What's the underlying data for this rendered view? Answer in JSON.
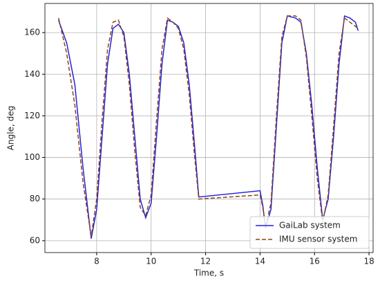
{
  "chart_data": {
    "type": "line",
    "x_label": "Time, s",
    "y_label": "Angle, deg",
    "x": [
      6.6,
      6.9,
      7.2,
      7.5,
      7.8,
      8.0,
      8.2,
      8.4,
      8.6,
      8.8,
      9.0,
      9.2,
      9.4,
      9.6,
      9.8,
      10.0,
      10.2,
      10.4,
      10.6,
      10.8,
      11.0,
      11.2,
      11.4,
      11.6,
      11.75,
      14.0,
      14.1,
      14.2,
      14.4,
      14.6,
      14.8,
      15.0,
      15.3,
      15.5,
      15.7,
      15.9,
      16.1,
      16.3,
      16.5,
      16.7,
      16.9,
      17.1,
      17.3,
      17.5,
      17.6
    ],
    "series": [
      {
        "name": "GaiLab system",
        "color": "#2222dd",
        "dash": false,
        "values": [
          166,
          155,
          135,
          95,
          61,
          75,
          110,
          145,
          162,
          164,
          160,
          140,
          110,
          80,
          71,
          78,
          110,
          145,
          166,
          165,
          163,
          155,
          135,
          105,
          81,
          84,
          77,
          66,
          75,
          115,
          155,
          168,
          167,
          165,
          150,
          125,
          95,
          70,
          80,
          110,
          145,
          168,
          167,
          165,
          161
        ]
      },
      {
        "name": "IMU sensor system",
        "color": "#8b4513",
        "dash": true,
        "values": [
          167,
          150,
          125,
          88,
          62,
          80,
          118,
          152,
          165,
          166,
          158,
          135,
          103,
          76,
          72,
          82,
          118,
          152,
          167,
          165,
          162,
          152,
          130,
          100,
          80,
          82,
          76,
          67,
          78,
          120,
          158,
          168,
          168,
          166,
          148,
          120,
          90,
          69,
          82,
          115,
          150,
          167,
          165,
          163,
          162
        ]
      }
    ],
    "xlim": [
      6.1,
      18.15
    ],
    "xticks": [
      8,
      10,
      12,
      14,
      16,
      18
    ],
    "ylim": [
      54.3,
      174
    ],
    "yticks": [
      60,
      80,
      100,
      120,
      140,
      160
    ],
    "grid": true,
    "legend": "lower right"
  }
}
